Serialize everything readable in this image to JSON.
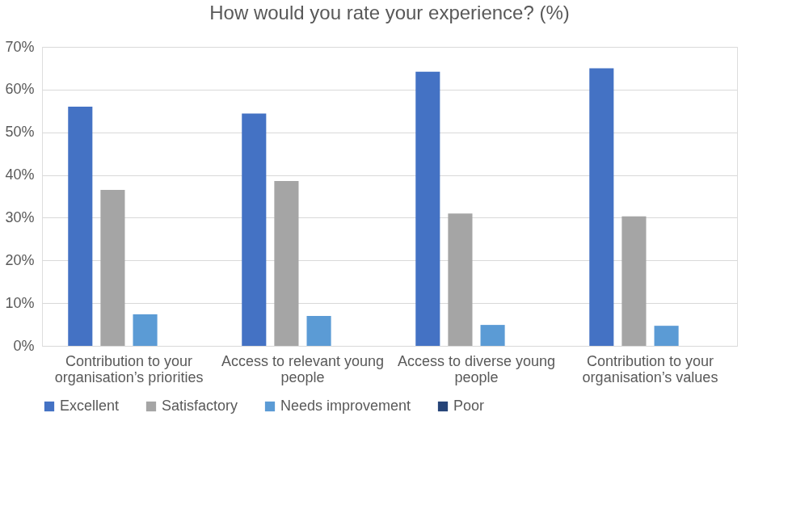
{
  "chart_data": {
    "type": "bar",
    "title": "How would you rate your experience? (%)",
    "categories": [
      "Contribution to your organisation’s priorities",
      "Access to relevant young people",
      "Access to diverse young people",
      "Contribution to your organisation’s values"
    ],
    "series": [
      {
        "name": "Excellent",
        "color": "#4472c4",
        "values": [
          56,
          54.4,
          64.2,
          65
        ]
      },
      {
        "name": "Satisfactory",
        "color": "#a5a5a5",
        "values": [
          36.5,
          38.6,
          31,
          30.3
        ]
      },
      {
        "name": "Needs improvement",
        "color": "#5b9bd5",
        "values": [
          7.4,
          7,
          4.9,
          4.7
        ]
      },
      {
        "name": "Poor",
        "color": "#264478",
        "values": [
          0,
          0,
          0,
          0
        ]
      }
    ],
    "ylim": [
      0,
      70
    ],
    "yticks": [
      {
        "value": 0,
        "label": "0%"
      },
      {
        "value": 10,
        "label": "10%"
      },
      {
        "value": 20,
        "label": "20%"
      },
      {
        "value": 30,
        "label": "30%"
      },
      {
        "value": 40,
        "label": "40%"
      },
      {
        "value": 50,
        "label": "50%"
      },
      {
        "value": 60,
        "label": "60%"
      },
      {
        "value": 70,
        "label": "70%"
      }
    ],
    "grid": "y",
    "legend": "bottom"
  }
}
